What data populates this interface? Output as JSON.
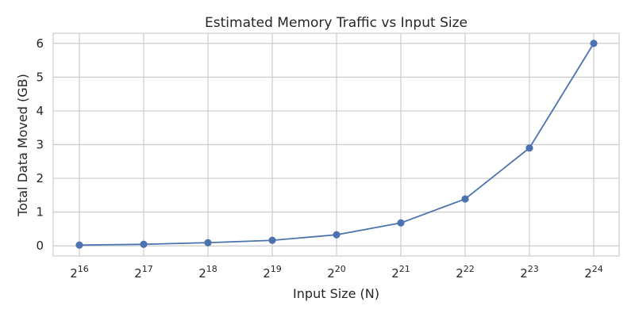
{
  "chart_data": {
    "type": "line",
    "title": "Estimated Memory Traffic vs Input Size",
    "xlabel": "Input Size (N)",
    "ylabel": "Total Data Moved (GB)",
    "x_scale": "log2",
    "x_tick_base": "2",
    "x_tick_exponents": [
      "16",
      "17",
      "18",
      "19",
      "20",
      "21",
      "22",
      "23",
      "24"
    ],
    "y_ticks": [
      0,
      1,
      2,
      3,
      4,
      5,
      6
    ],
    "y_tick_labels": [
      "0",
      "1",
      "2",
      "3",
      "4",
      "5",
      "6"
    ],
    "ylim": [
      -0.3,
      6.3
    ],
    "grid": true,
    "legend": "none",
    "series": [
      {
        "color": "#4c72b0",
        "x": [
          65536,
          131072,
          262144,
          524288,
          1048576,
          2097152,
          4194304,
          8388608,
          16777216
        ],
        "values": [
          0.023,
          0.047,
          0.094,
          0.164,
          0.328,
          0.68,
          1.39,
          2.9,
          6.0
        ]
      }
    ]
  }
}
